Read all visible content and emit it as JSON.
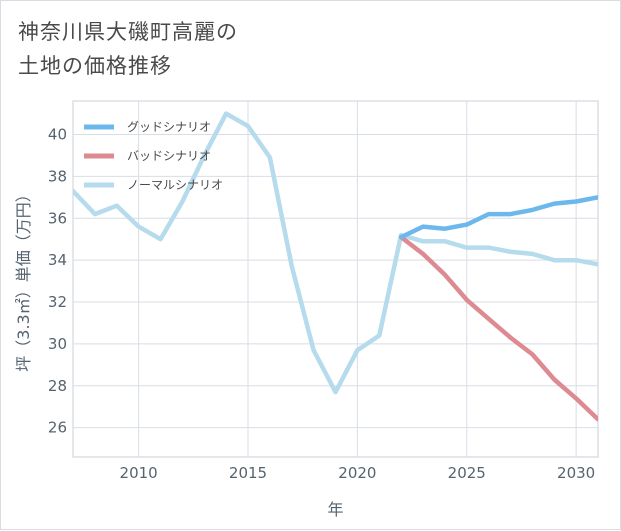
{
  "title_line1": "神奈川県大磯町高麗の",
  "title_line2": "土地の価格推移",
  "chart_data": {
    "type": "line",
    "xlabel": "年",
    "ylabel": "坪（3.3㎡）単価（万円）",
    "xlim": [
      2007,
      2031
    ],
    "ylim": [
      24.6,
      41.6
    ],
    "xticks": [
      2010,
      2015,
      2020,
      2025,
      2030
    ],
    "yticks": [
      26,
      28,
      30,
      32,
      34,
      36,
      38,
      40
    ],
    "grid": true,
    "legend_position": "top-left",
    "series": [
      {
        "name": "グッドシナリオ",
        "color": "#6cb8ec",
        "x": [
          2022,
          2023,
          2024,
          2025,
          2026,
          2027,
          2028,
          2029,
          2030,
          2031
        ],
        "y": [
          35.1,
          35.6,
          35.5,
          35.7,
          36.2,
          36.2,
          36.4,
          36.7,
          36.8,
          37.0
        ]
      },
      {
        "name": "バッドシナリオ",
        "color": "#dd8a92",
        "x": [
          2022,
          2023,
          2024,
          2025,
          2026,
          2027,
          2028,
          2029,
          2030,
          2031
        ],
        "y": [
          35.1,
          34.3,
          33.3,
          32.1,
          31.2,
          30.3,
          29.5,
          28.3,
          27.4,
          26.4
        ]
      },
      {
        "name": "ノーマルシナリオ",
        "color": "#b5dbec",
        "x": [
          2007,
          2008,
          2009,
          2010,
          2011,
          2012,
          2013,
          2014,
          2015,
          2016,
          2017,
          2018,
          2019,
          2020,
          2021,
          2022,
          2023,
          2024,
          2025,
          2026,
          2027,
          2028,
          2029,
          2030,
          2031
        ],
        "y": [
          37.3,
          36.2,
          36.6,
          35.6,
          35.0,
          36.8,
          39.0,
          41.0,
          40.4,
          38.9,
          33.7,
          29.7,
          27.7,
          29.7,
          30.4,
          35.2,
          34.9,
          34.9,
          34.6,
          34.6,
          34.4,
          34.3,
          34.0,
          34.0,
          33.8
        ]
      }
    ]
  }
}
